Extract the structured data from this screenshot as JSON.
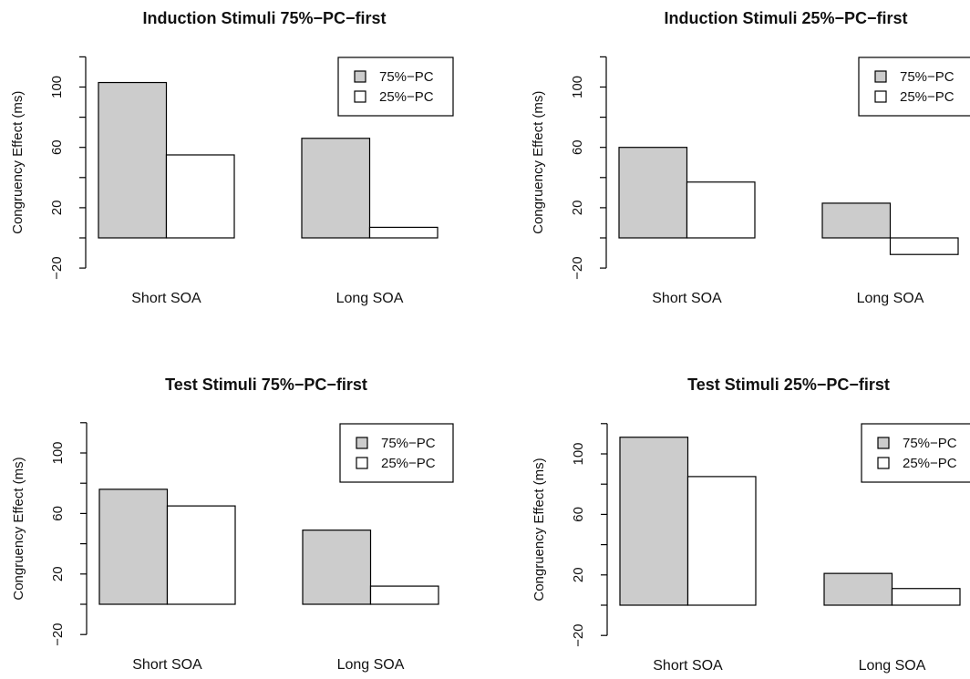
{
  "figure": {
    "background": "#ffffff",
    "colors": {
      "pc75": "#cccccc",
      "pc25": "#ffffff",
      "stroke": "#000000"
    }
  },
  "chart_data": [
    {
      "type": "bar",
      "title": "Induction Stimuli 75%−PC−first",
      "ylabel": "Congruency Effect (ms)",
      "xlabel": "",
      "categories": [
        "Short SOA",
        "Long SOA"
      ],
      "series": [
        {
          "name": "75%−PC",
          "color": "#cccccc",
          "values": [
            103,
            66
          ]
        },
        {
          "name": "25%−PC",
          "color": "#ffffff",
          "values": [
            55,
            7
          ]
        }
      ],
      "ylim": [
        -20,
        120
      ],
      "y_tick_labels": [
        "−20",
        "20",
        "60",
        "100"
      ],
      "y_ticks": [
        -20,
        0,
        20,
        40,
        60,
        80,
        100,
        120
      ],
      "legend": "top-right",
      "grid": false
    },
    {
      "type": "bar",
      "title": "Induction Stimuli 25%−PC−first",
      "ylabel": "Congruency Effect (ms)",
      "xlabel": "",
      "categories": [
        "Short SOA",
        "Long SOA"
      ],
      "series": [
        {
          "name": "75%−PC",
          "color": "#cccccc",
          "values": [
            60,
            23
          ]
        },
        {
          "name": "25%−PC",
          "color": "#ffffff",
          "values": [
            37,
            -11
          ]
        }
      ],
      "ylim": [
        -20,
        120
      ],
      "y_tick_labels": [
        "−20",
        "20",
        "60",
        "100"
      ],
      "y_ticks": [
        -20,
        0,
        20,
        40,
        60,
        80,
        100,
        120
      ],
      "legend": "top-right",
      "grid": false
    },
    {
      "type": "bar",
      "title": "Test Stimuli 75%−PC−first",
      "ylabel": "Congruency Effect (ms)",
      "xlabel": "",
      "categories": [
        "Short SOA",
        "Long SOA"
      ],
      "series": [
        {
          "name": "75%−PC",
          "color": "#cccccc",
          "values": [
            76,
            49
          ]
        },
        {
          "name": "25%−PC",
          "color": "#ffffff",
          "values": [
            65,
            12
          ]
        }
      ],
      "ylim": [
        -20,
        120
      ],
      "y_tick_labels": [
        "−20",
        "20",
        "60",
        "100"
      ],
      "y_ticks": [
        -20,
        0,
        20,
        40,
        60,
        80,
        100,
        120
      ],
      "legend": "top-right",
      "grid": false
    },
    {
      "type": "bar",
      "title": "Test Stimuli 25%−PC−first",
      "ylabel": "Congruency Effect (ms)",
      "xlabel": "",
      "categories": [
        "Short SOA",
        "Long SOA"
      ],
      "series": [
        {
          "name": "75%−PC",
          "color": "#cccccc",
          "values": [
            111,
            21
          ]
        },
        {
          "name": "25%−PC",
          "color": "#ffffff",
          "values": [
            85,
            11
          ]
        }
      ],
      "ylim": [
        -20,
        120
      ],
      "y_tick_labels": [
        "−20",
        "20",
        "60",
        "100"
      ],
      "y_ticks": [
        -20,
        0,
        20,
        40,
        60,
        80,
        100,
        120
      ],
      "legend": "top-right",
      "grid": false
    }
  ]
}
